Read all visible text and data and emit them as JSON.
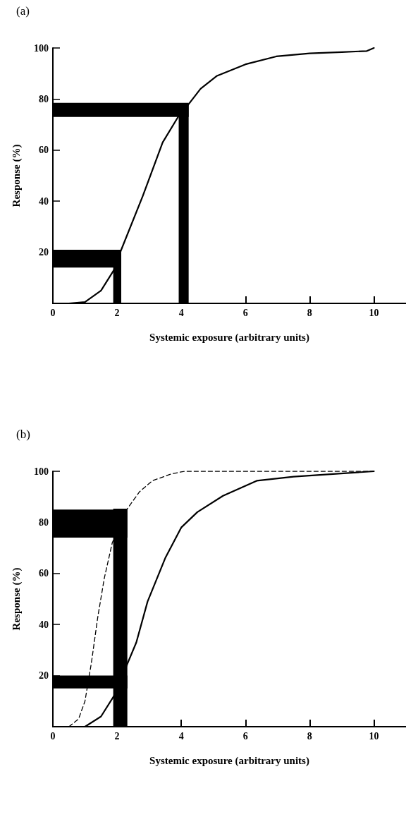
{
  "chart_data": [
    {
      "type": "line",
      "title": "(a)",
      "xlabel": "Systemic exposure (arbitrary units)",
      "ylabel": "Response (%)",
      "xlim": [
        0,
        11
      ],
      "xticks": [
        0,
        2,
        4,
        6,
        8,
        10
      ],
      "ylim": [
        0,
        100
      ],
      "yticks": [
        20,
        40,
        60,
        80,
        100
      ],
      "grid": false,
      "marker": "none",
      "series": [
        {
          "color": "#000000",
          "line_style": "solid",
          "x": [
            0,
            0.5,
            1,
            1.5,
            1.9,
            2.13,
            2.8,
            3.42,
            3.9,
            4.23,
            4.6,
            5.1,
            6,
            6.96,
            8,
            9,
            9.78,
            10
          ],
          "values": [
            0,
            0,
            0.5,
            5,
            13,
            21,
            42,
            63,
            73,
            78,
            84,
            89,
            93.6,
            96.7,
            97.9,
            98.4,
            98.8,
            100
          ]
        }
      ],
      "bands": [
        {
          "axis": "y",
          "from": 14,
          "to": 21,
          "color": "#000000"
        },
        {
          "axis": "x",
          "from": 1.88,
          "to": 2.13,
          "color": "#000000"
        },
        {
          "axis": "y",
          "from": 73,
          "to": 78.5,
          "color": "#000000"
        },
        {
          "axis": "x",
          "from": 3.92,
          "to": 4.23,
          "color": "#000000"
        }
      ]
    },
    {
      "type": "line",
      "title": "(b)",
      "xlabel": "Systemic exposure (arbitrary units)",
      "ylabel": "Response (%)",
      "xlim": [
        0,
        11
      ],
      "xticks": [
        0,
        2,
        4,
        6,
        8,
        10
      ],
      "ylim": [
        0,
        100
      ],
      "yticks": [
        20,
        40,
        60,
        80,
        100
      ],
      "grid": false,
      "marker": "none",
      "series": [
        {
          "color": "#000000",
          "line_style": "solid",
          "x": [
            0,
            1,
            1.5,
            2,
            2.3,
            2.6,
            2.95,
            3.5,
            4,
            4.5,
            5.3,
            6.35,
            7.5,
            10
          ],
          "values": [
            0,
            0,
            4,
            14,
            24,
            33,
            49,
            66,
            78,
            84,
            90.4,
            96.3,
            97.9,
            100
          ]
        },
        {
          "color": "#000000",
          "line_style": "dashed",
          "x": [
            0.5,
            0.8,
            1,
            1.2,
            1.4,
            1.6,
            1.85,
            2.3,
            2.7,
            3.1,
            3.7,
            4.1,
            10
          ],
          "values": [
            0,
            3,
            10,
            25,
            43,
            58,
            72,
            85,
            92,
            96.3,
            99,
            100,
            100
          ]
        }
      ],
      "bands": [
        {
          "axis": "y",
          "from": 74,
          "to": 85,
          "color": "#000000"
        },
        {
          "axis": "y",
          "from": 15,
          "to": 20,
          "color": "#000000"
        },
        {
          "axis": "x",
          "from": 1.88,
          "to": 2.32,
          "color": "#000000"
        }
      ]
    }
  ]
}
